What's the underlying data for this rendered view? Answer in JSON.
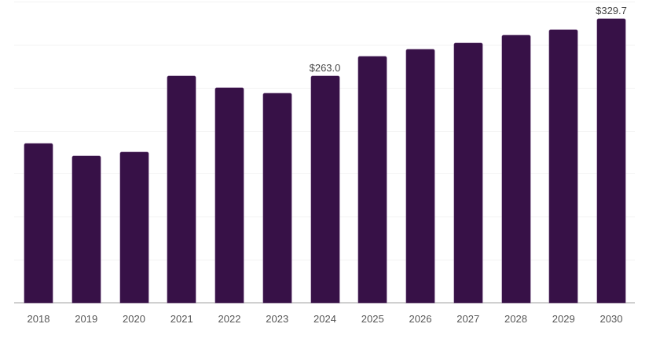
{
  "chart_data": {
    "type": "bar",
    "title": "",
    "xlabel": "",
    "ylabel": "",
    "categories": [
      "2018",
      "2019",
      "2020",
      "2021",
      "2022",
      "2023",
      "2024",
      "2025",
      "2026",
      "2027",
      "2028",
      "2029",
      "2030"
    ],
    "values": [
      184.8,
      170.2,
      175.0,
      263.1,
      250.0,
      243.1,
      263.0,
      285.9,
      294.4,
      301.7,
      311.1,
      317.5,
      329.7
    ],
    "data_labels": {
      "2024": "$263.0",
      "2030": "$329.7"
    },
    "ylim": [
      0,
      350
    ],
    "grid": true,
    "y_axis_visible": false,
    "legend": null,
    "bar_color": "#371147"
  }
}
